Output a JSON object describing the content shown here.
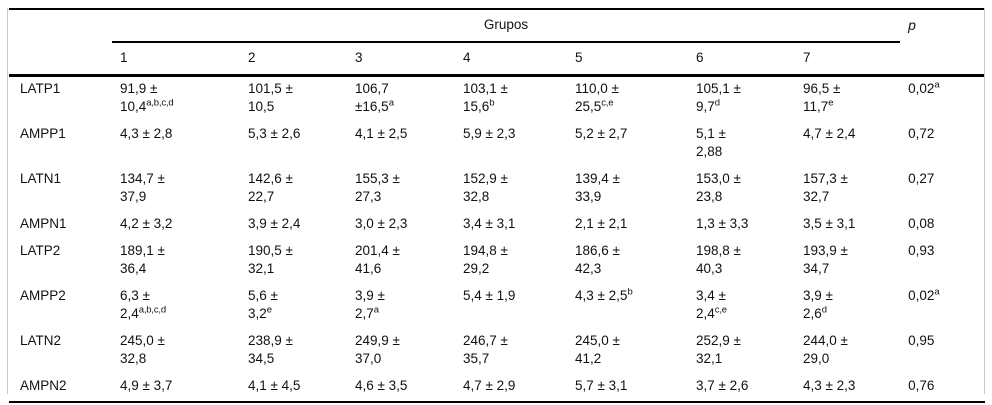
{
  "header": {
    "group_label": "Grupos",
    "group_cols": [
      "1",
      "2",
      "3",
      "4",
      "5",
      "6",
      "7"
    ],
    "p_label": "p"
  },
  "rows": [
    {
      "label": "LATP1",
      "cells": [
        [
          "91,9 ±",
          {
            "t": "10,4",
            "sup": "a,b,c,d"
          }
        ],
        [
          "101,5 ±",
          "10,5"
        ],
        [
          "106,7",
          {
            "t": "±16,5",
            "sup": "a"
          }
        ],
        [
          "103,1 ±",
          {
            "t": "15,6",
            "sup": "b"
          }
        ],
        [
          "110,0 ±",
          {
            "t": "25,5",
            "sup": "c,e"
          }
        ],
        [
          "105,1 ±",
          {
            "t": "9,7",
            "sup": "d"
          }
        ],
        [
          "96,5 ±",
          {
            "t": "11,7",
            "sup": "e"
          }
        ]
      ],
      "p": {
        "t": "0,02",
        "sup": "a"
      }
    },
    {
      "label": "AMPP1",
      "cells": [
        [
          "4,3 ± 2,8"
        ],
        [
          "5,3 ± 2,6"
        ],
        [
          "4,1 ± 2,5"
        ],
        [
          "5,9 ± 2,3"
        ],
        [
          "5,2 ± 2,7"
        ],
        [
          "5,1 ±",
          "2,88"
        ],
        [
          "4,7 ± 2,4"
        ]
      ],
      "p": "0,72"
    },
    {
      "label": "LATN1",
      "cells": [
        [
          "134,7 ±",
          "37,9"
        ],
        [
          "142,6 ±",
          "22,7"
        ],
        [
          "155,3 ±",
          "27,3"
        ],
        [
          "152,9 ±",
          "32,8"
        ],
        [
          "139,4 ±",
          "33,9"
        ],
        [
          "153,0 ±",
          "23,8"
        ],
        [
          "157,3 ±",
          "32,7"
        ]
      ],
      "p": "0,27"
    },
    {
      "label": "AMPN1",
      "cells": [
        [
          "4,2 ± 3,2"
        ],
        [
          "3,9 ± 2,4"
        ],
        [
          "3,0 ± 2,3"
        ],
        [
          "3,4 ± 3,1"
        ],
        [
          "2,1 ± 2,1"
        ],
        [
          "1,3 ± 3,3"
        ],
        [
          "3,5 ± 3,1"
        ]
      ],
      "p": "0,08"
    },
    {
      "label": "LATP2",
      "cells": [
        [
          "189,1 ±",
          "36,4"
        ],
        [
          "190,5 ±",
          "32,1"
        ],
        [
          "201,4 ±",
          "41,6"
        ],
        [
          "194,8 ±",
          "29,2"
        ],
        [
          "186,6 ±",
          "42,3"
        ],
        [
          "198,8 ±",
          "40,3"
        ],
        [
          "193,9 ±",
          "34,7"
        ]
      ],
      "p": "0,93"
    },
    {
      "label": "AMPP2",
      "cells": [
        [
          "6,3 ±",
          {
            "t": "2,4",
            "sup": "a,b,c,d"
          }
        ],
        [
          "5,6 ±",
          {
            "t": "3,2",
            "sup": "e"
          }
        ],
        [
          "3,9 ±",
          {
            "t": "2,7",
            "sup": "a"
          }
        ],
        [
          "5,4 ± 1,9"
        ],
        [
          {
            "t": "4,3 ± 2,5",
            "sup": "b"
          }
        ],
        [
          "3,4 ±",
          {
            "t": "2,4",
            "sup": "c,e"
          }
        ],
        [
          "3,9 ±",
          {
            "t": "2,6",
            "sup": "d"
          }
        ]
      ],
      "p": {
        "t": "0,02",
        "sup": "a"
      }
    },
    {
      "label": "LATN2",
      "cells": [
        [
          "245,0 ±",
          "32,8"
        ],
        [
          "238,9 ±",
          "34,5"
        ],
        [
          "249,9 ±",
          "37,0"
        ],
        [
          "246,7 ±",
          "35,7"
        ],
        [
          "245,0 ±",
          "41,2"
        ],
        [
          "252,9 ±",
          "32,1"
        ],
        [
          "244,0 ±",
          "29,0"
        ]
      ],
      "p": "0,95"
    },
    {
      "label": "AMPN2",
      "cells": [
        [
          "4,9 ± 3,7"
        ],
        [
          "4,1 ± 4,5"
        ],
        [
          "4,6 ± 3,5"
        ],
        [
          "4,7 ± 2,9"
        ],
        [
          "5,7 ± 3,1"
        ],
        [
          "3,7 ± 2,6"
        ],
        [
          "4,3 ± 2,3"
        ]
      ],
      "p": "0,76"
    }
  ]
}
